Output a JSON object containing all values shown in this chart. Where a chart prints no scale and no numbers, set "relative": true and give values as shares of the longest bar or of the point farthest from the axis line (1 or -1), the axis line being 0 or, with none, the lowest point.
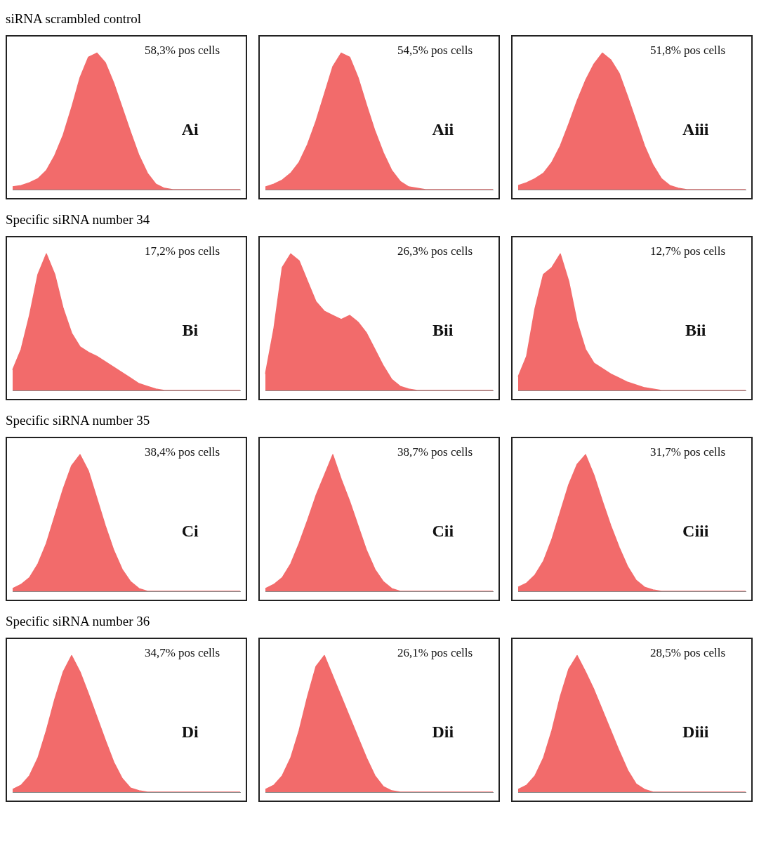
{
  "chart_data": [
    {
      "type": "area",
      "relative": true,
      "title": "siRNA scrambled control",
      "color": "#f26b6b",
      "categories": [
        null,
        null,
        null,
        null,
        null,
        null,
        null,
        null,
        null,
        null,
        null,
        null,
        null,
        null,
        null,
        null,
        null,
        null,
        null,
        null,
        null,
        null,
        null,
        null,
        null,
        null,
        null,
        null
      ],
      "values": [
        0.02,
        0.03,
        0.05,
        0.08,
        0.14,
        0.25,
        0.4,
        0.6,
        0.82,
        0.97,
        1,
        0.93,
        0.78,
        0.6,
        0.42,
        0.25,
        0.12,
        0.04,
        0.01,
        0,
        0,
        0,
        0,
        0,
        0,
        0,
        0,
        0
      ],
      "annotations": [
        "58,3% pos cells",
        "Ai"
      ]
    },
    {
      "type": "area",
      "relative": true,
      "color": "#f26b6b",
      "categories": [
        null,
        null,
        null,
        null,
        null,
        null,
        null,
        null,
        null,
        null,
        null,
        null,
        null,
        null,
        null,
        null,
        null,
        null,
        null,
        null,
        null,
        null,
        null,
        null,
        null,
        null,
        null,
        null
      ],
      "values": [
        0.02,
        0.04,
        0.07,
        0.12,
        0.2,
        0.33,
        0.5,
        0.7,
        0.9,
        1,
        0.97,
        0.82,
        0.62,
        0.43,
        0.27,
        0.14,
        0.06,
        0.02,
        0.01,
        0,
        0,
        0,
        0,
        0,
        0,
        0,
        0,
        0
      ],
      "annotations": [
        "54,5% pos cells",
        "Aii"
      ]
    },
    {
      "type": "area",
      "relative": true,
      "color": "#f26b6b",
      "categories": [
        null,
        null,
        null,
        null,
        null,
        null,
        null,
        null,
        null,
        null,
        null,
        null,
        null,
        null,
        null,
        null,
        null,
        null,
        null,
        null,
        null,
        null,
        null,
        null,
        null,
        null,
        null,
        null
      ],
      "values": [
        0.03,
        0.05,
        0.08,
        0.12,
        0.2,
        0.32,
        0.48,
        0.65,
        0.8,
        0.92,
        1,
        0.95,
        0.85,
        0.68,
        0.5,
        0.32,
        0.18,
        0.08,
        0.03,
        0.01,
        0,
        0,
        0,
        0,
        0,
        0,
        0,
        0
      ],
      "annotations": [
        "51,8% pos cells",
        "Aiii"
      ]
    },
    {
      "type": "area",
      "relative": true,
      "title": "Specific siRNA number 34",
      "color": "#f26b6b",
      "categories": [
        null,
        null,
        null,
        null,
        null,
        null,
        null,
        null,
        null,
        null,
        null,
        null,
        null,
        null,
        null,
        null,
        null,
        null,
        null,
        null,
        null,
        null,
        null,
        null,
        null,
        null,
        null,
        null
      ],
      "values": [
        0.15,
        0.3,
        0.55,
        0.85,
        1,
        0.85,
        0.6,
        0.42,
        0.32,
        0.28,
        0.25,
        0.21,
        0.17,
        0.13,
        0.09,
        0.05,
        0.03,
        0.01,
        0,
        0,
        0,
        0,
        0,
        0,
        0,
        0,
        0,
        0
      ],
      "annotations": [
        "17,2% pos cells",
        "Bi"
      ]
    },
    {
      "type": "area",
      "relative": true,
      "color": "#f26b6b",
      "categories": [
        null,
        null,
        null,
        null,
        null,
        null,
        null,
        null,
        null,
        null,
        null,
        null,
        null,
        null,
        null,
        null,
        null,
        null,
        null,
        null,
        null,
        null,
        null,
        null,
        null,
        null,
        null,
        null
      ],
      "values": [
        0.12,
        0.45,
        0.9,
        1,
        0.95,
        0.8,
        0.65,
        0.58,
        0.55,
        0.52,
        0.55,
        0.5,
        0.42,
        0.3,
        0.18,
        0.08,
        0.03,
        0.01,
        0,
        0,
        0,
        0,
        0,
        0,
        0,
        0,
        0,
        0
      ],
      "annotations": [
        "26,3% pos cells",
        "Bii"
      ]
    },
    {
      "type": "area",
      "relative": true,
      "color": "#f26b6b",
      "categories": [
        null,
        null,
        null,
        null,
        null,
        null,
        null,
        null,
        null,
        null,
        null,
        null,
        null,
        null,
        null,
        null,
        null,
        null,
        null,
        null,
        null,
        null,
        null,
        null,
        null,
        null,
        null,
        null
      ],
      "values": [
        0.1,
        0.25,
        0.6,
        0.85,
        0.9,
        1,
        0.8,
        0.5,
        0.3,
        0.2,
        0.16,
        0.12,
        0.09,
        0.06,
        0.04,
        0.02,
        0.01,
        0,
        0,
        0,
        0,
        0,
        0,
        0,
        0,
        0,
        0,
        0
      ],
      "annotations": [
        "12,7% pos cells",
        "Bii"
      ]
    },
    {
      "type": "area",
      "relative": true,
      "title": "Specific siRNA number 35",
      "color": "#f26b6b",
      "categories": [
        null,
        null,
        null,
        null,
        null,
        null,
        null,
        null,
        null,
        null,
        null,
        null,
        null,
        null,
        null,
        null,
        null,
        null,
        null,
        null,
        null,
        null,
        null,
        null,
        null,
        null,
        null,
        null
      ],
      "values": [
        0.02,
        0.05,
        0.1,
        0.2,
        0.35,
        0.55,
        0.75,
        0.92,
        1,
        0.88,
        0.68,
        0.48,
        0.3,
        0.16,
        0.07,
        0.02,
        0,
        0,
        0,
        0,
        0,
        0,
        0,
        0,
        0,
        0,
        0,
        0
      ],
      "annotations": [
        "38,4% pos cells",
        "Ci"
      ]
    },
    {
      "type": "area",
      "relative": true,
      "color": "#f26b6b",
      "categories": [
        null,
        null,
        null,
        null,
        null,
        null,
        null,
        null,
        null,
        null,
        null,
        null,
        null,
        null,
        null,
        null,
        null,
        null,
        null,
        null,
        null,
        null,
        null,
        null,
        null,
        null,
        null,
        null
      ],
      "values": [
        0.02,
        0.05,
        0.1,
        0.2,
        0.35,
        0.52,
        0.7,
        0.85,
        1,
        0.82,
        0.66,
        0.48,
        0.3,
        0.16,
        0.07,
        0.02,
        0,
        0,
        0,
        0,
        0,
        0,
        0,
        0,
        0,
        0,
        0,
        0
      ],
      "annotations": [
        "38,7% pos cells",
        "Cii"
      ]
    },
    {
      "type": "area",
      "relative": true,
      "color": "#f26b6b",
      "categories": [
        null,
        null,
        null,
        null,
        null,
        null,
        null,
        null,
        null,
        null,
        null,
        null,
        null,
        null,
        null,
        null,
        null,
        null,
        null,
        null,
        null,
        null,
        null,
        null,
        null,
        null,
        null,
        null
      ],
      "values": [
        0.03,
        0.06,
        0.12,
        0.22,
        0.38,
        0.58,
        0.78,
        0.93,
        1,
        0.85,
        0.66,
        0.48,
        0.32,
        0.18,
        0.08,
        0.03,
        0.01,
        0,
        0,
        0,
        0,
        0,
        0,
        0,
        0,
        0,
        0,
        0
      ],
      "annotations": [
        "31,7% pos cells",
        "Ciii"
      ]
    },
    {
      "type": "area",
      "relative": true,
      "title": "Specific siRNA number 36",
      "color": "#f26b6b",
      "categories": [
        null,
        null,
        null,
        null,
        null,
        null,
        null,
        null,
        null,
        null,
        null,
        null,
        null,
        null,
        null,
        null,
        null,
        null,
        null,
        null,
        null,
        null,
        null,
        null,
        null,
        null,
        null,
        null
      ],
      "values": [
        0.02,
        0.05,
        0.12,
        0.25,
        0.45,
        0.68,
        0.88,
        1,
        0.88,
        0.72,
        0.55,
        0.38,
        0.22,
        0.1,
        0.03,
        0.01,
        0,
        0,
        0,
        0,
        0,
        0,
        0,
        0,
        0,
        0,
        0,
        0
      ],
      "annotations": [
        "34,7% pos cells",
        "Di"
      ]
    },
    {
      "type": "area",
      "relative": true,
      "color": "#f26b6b",
      "categories": [
        null,
        null,
        null,
        null,
        null,
        null,
        null,
        null,
        null,
        null,
        null,
        null,
        null,
        null,
        null,
        null,
        null,
        null,
        null,
        null,
        null,
        null,
        null,
        null,
        null,
        null,
        null,
        null
      ],
      "values": [
        0.02,
        0.05,
        0.12,
        0.25,
        0.45,
        0.7,
        0.92,
        1,
        0.85,
        0.7,
        0.55,
        0.4,
        0.25,
        0.12,
        0.04,
        0.01,
        0,
        0,
        0,
        0,
        0,
        0,
        0,
        0,
        0,
        0,
        0,
        0
      ],
      "annotations": [
        "26,1% pos cells",
        "Dii"
      ]
    },
    {
      "type": "area",
      "relative": true,
      "color": "#f26b6b",
      "categories": [
        null,
        null,
        null,
        null,
        null,
        null,
        null,
        null,
        null,
        null,
        null,
        null,
        null,
        null,
        null,
        null,
        null,
        null,
        null,
        null,
        null,
        null,
        null,
        null,
        null,
        null,
        null,
        null
      ],
      "values": [
        0.02,
        0.05,
        0.12,
        0.25,
        0.45,
        0.7,
        0.9,
        1,
        0.88,
        0.75,
        0.6,
        0.45,
        0.3,
        0.16,
        0.06,
        0.02,
        0,
        0,
        0,
        0,
        0,
        0,
        0,
        0,
        0,
        0,
        0,
        0
      ],
      "annotations": [
        "28,5% pos cells",
        "Diii"
      ]
    }
  ]
}
